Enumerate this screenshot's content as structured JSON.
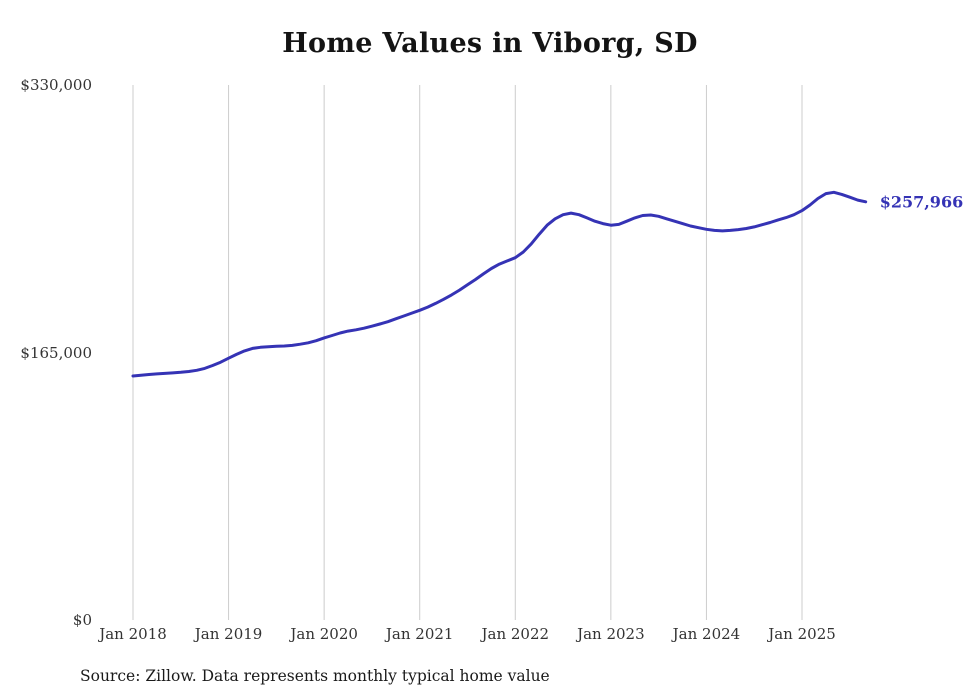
{
  "source_note": "Source: Zillow. Data represents monthly typical home value",
  "colors": {
    "line": "#3533b5",
    "grid": "#cccccc",
    "title_text": "#141414",
    "axis_text": "#333333"
  },
  "chart_data": {
    "type": "line",
    "title": "Home Values in Viborg, SD",
    "xlabel": "",
    "ylabel": "",
    "legend": "none",
    "grid": "vertical-only",
    "ylim": [
      0,
      330000
    ],
    "y_ticks": [
      {
        "value": 0,
        "label": "$0"
      },
      {
        "value": 165000,
        "label": "$165,000"
      },
      {
        "value": 330000,
        "label": "$330,000"
      }
    ],
    "x_tick_labels": [
      "Jan 2018",
      "Jan 2019",
      "Jan 2020",
      "Jan 2021",
      "Jan 2022",
      "Jan 2023",
      "Jan 2024",
      "Jan 2025"
    ],
    "x_tick_months": [
      0,
      12,
      24,
      36,
      48,
      60,
      72,
      84
    ],
    "months": [
      "2018-01",
      "2018-02",
      "2018-03",
      "2018-04",
      "2018-05",
      "2018-06",
      "2018-07",
      "2018-08",
      "2018-09",
      "2018-10",
      "2018-11",
      "2018-12",
      "2019-01",
      "2019-02",
      "2019-03",
      "2019-04",
      "2019-05",
      "2019-06",
      "2019-07",
      "2019-08",
      "2019-09",
      "2019-10",
      "2019-11",
      "2019-12",
      "2020-01",
      "2020-02",
      "2020-03",
      "2020-04",
      "2020-05",
      "2020-06",
      "2020-07",
      "2020-08",
      "2020-09",
      "2020-10",
      "2020-11",
      "2020-12",
      "2021-01",
      "2021-02",
      "2021-03",
      "2021-04",
      "2021-05",
      "2021-06",
      "2021-07",
      "2021-08",
      "2021-09",
      "2021-10",
      "2021-11",
      "2021-12",
      "2022-01",
      "2022-02",
      "2022-03",
      "2022-04",
      "2022-05",
      "2022-06",
      "2022-07",
      "2022-08",
      "2022-09",
      "2022-10",
      "2022-11",
      "2022-12",
      "2023-01",
      "2023-02",
      "2023-03",
      "2023-04",
      "2023-05",
      "2023-06",
      "2023-07",
      "2023-08",
      "2023-09",
      "2023-10",
      "2023-11",
      "2023-12",
      "2024-01",
      "2024-02",
      "2024-03",
      "2024-04",
      "2024-05",
      "2024-06",
      "2024-07",
      "2024-08",
      "2024-09",
      "2024-10",
      "2024-11",
      "2024-12",
      "2025-01",
      "2025-02",
      "2025-03",
      "2025-04",
      "2025-05",
      "2025-06",
      "2025-07",
      "2025-08",
      "2025-09"
    ],
    "series": [
      {
        "name": "Typical home value",
        "end_value_label": "$257,966",
        "end_value": 257966,
        "values": [
          150500,
          151000,
          151400,
          151800,
          152100,
          152400,
          152800,
          153300,
          154000,
          155200,
          157000,
          159000,
          161500,
          163800,
          166000,
          167500,
          168200,
          168500,
          168800,
          169000,
          169400,
          170100,
          171000,
          172300,
          174000,
          175500,
          177000,
          178200,
          179000,
          180000,
          181200,
          182600,
          184000,
          185800,
          187500,
          189300,
          191000,
          193000,
          195300,
          197800,
          200500,
          203500,
          206800,
          210000,
          213500,
          216800,
          219500,
          221500,
          223500,
          227000,
          232000,
          238000,
          243500,
          247500,
          250000,
          251000,
          250000,
          248000,
          246000,
          244500,
          243500,
          244000,
          246000,
          248000,
          249500,
          249800,
          249000,
          247500,
          246000,
          244500,
          243000,
          242000,
          241000,
          240300,
          240000,
          240300,
          240800,
          241500,
          242500,
          243800,
          245200,
          246800,
          248200,
          250000,
          252500,
          256000,
          260000,
          263000,
          263800,
          262500,
          260800,
          259000,
          257966
        ]
      }
    ]
  }
}
